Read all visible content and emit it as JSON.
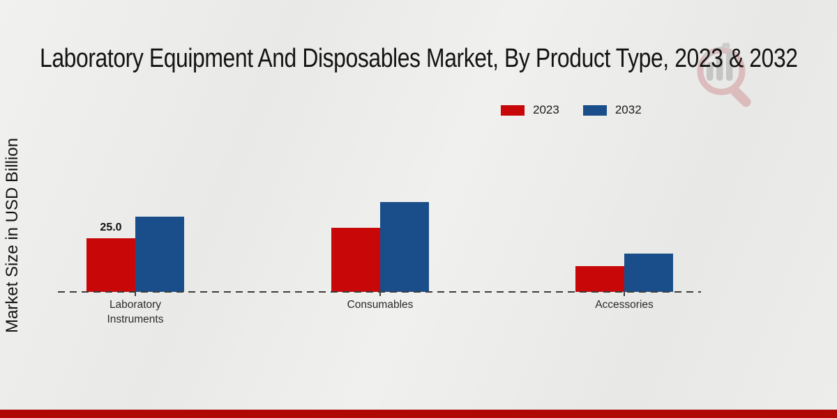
{
  "title": "Laboratory Equipment And Disposables Market, By Product Type, 2023 & 2032",
  "ylabel": "Market Size in USD Billion",
  "chart_data": {
    "type": "bar",
    "title": "Laboratory Equipment And Disposables Market, By Product Type, 2023 & 2032",
    "xlabel": "",
    "ylabel": "Market Size in USD Billion",
    "categories": [
      "Laboratory Instruments",
      "Consumables",
      "Accessories"
    ],
    "series": [
      {
        "name": "2023",
        "color": "#c80808",
        "values": [
          25.0,
          30.0,
          12.0
        ]
      },
      {
        "name": "2032",
        "color": "#1a4e8a",
        "values": [
          35.0,
          42.0,
          18.0
        ]
      }
    ],
    "bar_labels": [
      {
        "series_index": 0,
        "category_index": 0,
        "text": "25.0"
      }
    ],
    "ylim": [
      0,
      45
    ],
    "grid": false,
    "legend_position": "top-right",
    "baseline_style": "dashed"
  },
  "colors": {
    "bar_2023": "#c80808",
    "bar_2032": "#1a4e8a",
    "footer_stripe": "#b00707",
    "axis_line": "#3c3c3c",
    "background": "#ececea"
  },
  "watermark_icon": "magnifier-bar-chart-logo"
}
